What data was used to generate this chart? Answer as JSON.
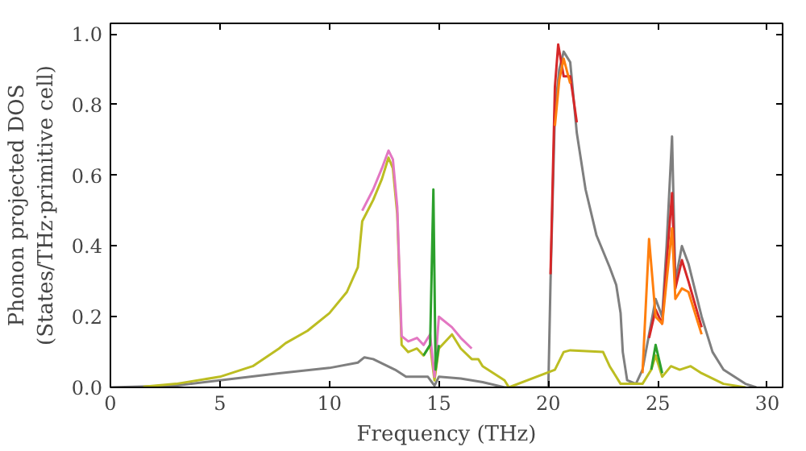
{
  "chart_data": {
    "type": "line",
    "xlabel": "Frequency (THz)",
    "ylabel": "Phonon projected DOS\n(States/THz·primitive cell)",
    "xlim": [
      0,
      30.7
    ],
    "ylim": [
      0,
      1.03
    ],
    "xticks": [
      0,
      5,
      10,
      15,
      20,
      25,
      30
    ],
    "yticks": [
      {
        "value": 0,
        "label": "0.0"
      },
      {
        "value": 0.2,
        "label": "0.2"
      },
      {
        "value": 0.4,
        "label": "0.4"
      },
      {
        "value": 0.6,
        "label": "0.6"
      },
      {
        "value": 0.8,
        "label": "0.8"
      },
      {
        "value": 1.0,
        "label": "1.0"
      }
    ],
    "grid": false,
    "series": [
      {
        "color": "#7f7f7f",
        "x": [
          0,
          3,
          5,
          7.7,
          10,
          11.3,
          11.6,
          12,
          13,
          13.5,
          14.5,
          14.8,
          15,
          16,
          17,
          18,
          20,
          20.1,
          20.3,
          20.5,
          20.7,
          21,
          21.3,
          21.7,
          22.2,
          22.8,
          23.1,
          23.3,
          23.4,
          23.6,
          24,
          24.3,
          24.6,
          24.9,
          25.2,
          25.4,
          25.65,
          25.8,
          26.1,
          26.4,
          27,
          27.5,
          28,
          29,
          29.5
        ],
        "values": [
          0,
          0.005,
          0.02,
          0.04,
          0.055,
          0.07,
          0.085,
          0.08,
          0.05,
          0.03,
          0.03,
          0.005,
          0.03,
          0.025,
          0.015,
          0,
          0,
          0.3,
          0.78,
          0.9,
          0.95,
          0.92,
          0.72,
          0.56,
          0.43,
          0.34,
          0.29,
          0.21,
          0.1,
          0.02,
          0.01,
          0.05,
          0.15,
          0.25,
          0.2,
          0.4,
          0.71,
          0.3,
          0.4,
          0.35,
          0.2,
          0.1,
          0.05,
          0.01,
          0
        ]
      },
      {
        "color": "#d62728",
        "x": [
          20.1,
          20.3,
          20.45,
          20.7,
          21,
          21.3,
          23,
          24.6,
          24.9,
          25.2,
          25.4,
          25.65,
          25.8,
          26.1,
          26.4,
          27
        ],
        "values": [
          0.32,
          0.85,
          0.97,
          0.88,
          0.88,
          0.75,
          null,
          0.14,
          0.22,
          0.18,
          0.35,
          0.55,
          0.28,
          0.36,
          0.3,
          0.17
        ]
      },
      {
        "color": "#ff7f0e",
        "x": [
          20.3,
          20.5,
          20.7,
          21,
          23,
          24.3,
          24.6,
          24.9,
          25.2,
          25.4,
          25.65,
          25.8,
          26.1,
          26.4,
          27
        ],
        "values": [
          0.74,
          0.87,
          0.93,
          0.86,
          null,
          0.04,
          0.42,
          0.2,
          0.18,
          0.3,
          0.45,
          0.25,
          0.28,
          0.27,
          0.15
        ]
      },
      {
        "color": "#bcbd22",
        "x": [
          1.5,
          3,
          5,
          6.5,
          7.7,
          8,
          9,
          10,
          10.8,
          11.3,
          11.5,
          12,
          12.4,
          12.7,
          12.9,
          13.1,
          13.3,
          13.6,
          14,
          14.3,
          14.6,
          14.8,
          15,
          15.6,
          16,
          16.5,
          16.8,
          17,
          17.5,
          18,
          18.2,
          20.3,
          20.7,
          21,
          22.5,
          22.8,
          23.3,
          24.3,
          24.7,
          24.9,
          25.2,
          25.6,
          26,
          26.5,
          27,
          28,
          29
        ],
        "values": [
          0.002,
          0.01,
          0.03,
          0.06,
          0.11,
          0.125,
          0.16,
          0.21,
          0.27,
          0.34,
          0.47,
          0.53,
          0.59,
          0.65,
          0.62,
          0.49,
          0.12,
          0.1,
          0.11,
          0.09,
          0.12,
          0.02,
          0.11,
          0.15,
          0.11,
          0.08,
          0.08,
          0.06,
          0.04,
          0.02,
          0,
          0.05,
          0.1,
          0.105,
          0.1,
          0.06,
          0.01,
          0.01,
          0.05,
          0.09,
          0.03,
          0.06,
          0.05,
          0.06,
          0.04,
          0.01,
          0
        ]
      },
      {
        "color": "#e377c2",
        "x": [
          11.5,
          12,
          12.4,
          12.7,
          12.9,
          13.1,
          13.3,
          13.6,
          14,
          14.3,
          14.6,
          14.8,
          15,
          15.6,
          16,
          16.5
        ],
        "values": [
          0.5,
          0.56,
          0.62,
          0.67,
          0.645,
          0.51,
          0.145,
          0.13,
          0.14,
          0.12,
          0.15,
          0.03,
          0.2,
          0.17,
          0.14,
          0.11
        ]
      },
      {
        "color": "#2ca02c",
        "x": [
          14.3,
          14.6,
          14.75,
          14.85,
          15,
          20,
          24.7,
          24.9,
          25.2
        ],
        "values": [
          0.09,
          0.12,
          0.56,
          0.05,
          0.12,
          null,
          0.05,
          0.12,
          0.04
        ]
      }
    ]
  }
}
